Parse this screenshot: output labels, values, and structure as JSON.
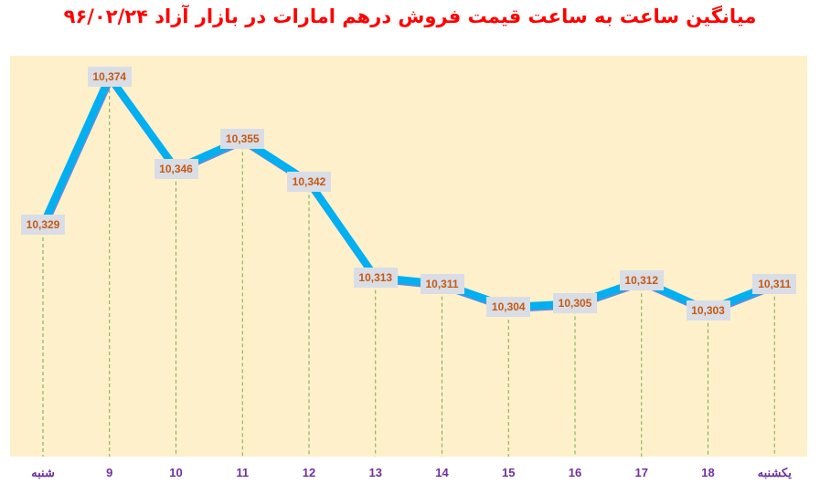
{
  "title": "میانگین ساعت به ساعت قیمت فروش درهم امارات در بازار آزاد ۹۶/۰۲/۲۴",
  "colors": {
    "title": "#ff0000",
    "plot_background": "#fff0cc",
    "line": "#00b0f0",
    "line_shadow": "#5b8fd8",
    "drop_lines": "#70ad47",
    "label_box": "#d9dde6",
    "label_text": "#c55a11",
    "axis_text": "#7030a0"
  },
  "chart_data": {
    "type": "line",
    "title": "میانگین ساعت به ساعت قیمت فروش درهم امارات در بازار آزاد ۹۶/۰۲/۲۴",
    "xlabel": "",
    "ylabel": "",
    "categories": [
      "شنبه",
      "9",
      "10",
      "11",
      "12",
      "13",
      "14",
      "15",
      "16",
      "17",
      "18",
      "یکشنبه"
    ],
    "values": [
      10329,
      10374,
      10346,
      10355,
      10342,
      10313,
      10311,
      10304,
      10305,
      10312,
      10303,
      10311
    ],
    "value_labels": [
      "10,329",
      "10,374",
      "10,346",
      "10,355",
      "10,342",
      "10,313",
      "10,311",
      "10,304",
      "10,305",
      "10,312",
      "10,303",
      "10,311"
    ],
    "ylim": [
      10258,
      10380
    ],
    "grid": false,
    "drop_lines": true,
    "legend": "none",
    "y_axis_visible": false
  }
}
